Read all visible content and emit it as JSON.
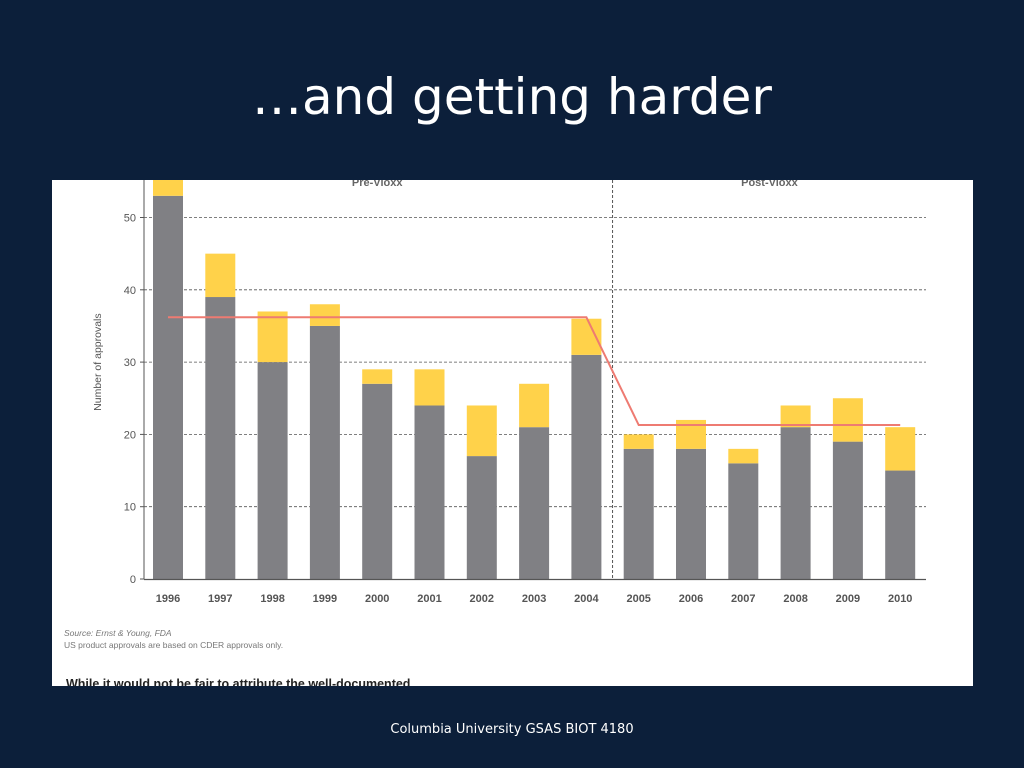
{
  "slide": {
    "title": "…and getting harder",
    "footer": "Columbia University GSAS BIOT 4180"
  },
  "source": {
    "label": "Source:",
    "value": "Ernst & Young, FDA",
    "note": "US product approvals are based on CDER approvals only."
  },
  "cutoff_text": "While it would not be fair to attribute the well-documented",
  "chart_data": {
    "type": "bar",
    "stacked": true,
    "title": "",
    "xlabel": "",
    "ylabel": "Number of approvals",
    "ylim": [
      0,
      55
    ],
    "yticks": [
      0,
      10,
      20,
      30,
      40,
      50
    ],
    "grid": true,
    "categories": [
      "1996",
      "1997",
      "1998",
      "1999",
      "2000",
      "2001",
      "2002",
      "2003",
      "2004",
      "2005",
      "2006",
      "2007",
      "2008",
      "2009",
      "2010"
    ],
    "series": [
      {
        "values": [
          53,
          39,
          30,
          35,
          27,
          24,
          17,
          21,
          31,
          18,
          18,
          16,
          21,
          19,
          15
        ],
        "color": "#808084"
      },
      {
        "values": [
          3,
          6,
          7,
          3,
          2,
          5,
          7,
          6,
          5,
          2,
          4,
          2,
          3,
          6,
          6
        ],
        "color": "#ffd24a"
      }
    ],
    "trend_line": {
      "color": "#ee7b72",
      "points": [
        {
          "x": "1996",
          "y": 36.2
        },
        {
          "x": "2004",
          "y": 36.2
        },
        {
          "x": "2005",
          "y": 21.3
        },
        {
          "x": "2010",
          "y": 21.3
        }
      ]
    },
    "divider_after": "2004",
    "regions": [
      {
        "label": "Pre-Vioxx",
        "from": "1996",
        "to": "2004"
      },
      {
        "label": "Post-Vioxx",
        "from": "2005",
        "to": "2010"
      }
    ]
  }
}
